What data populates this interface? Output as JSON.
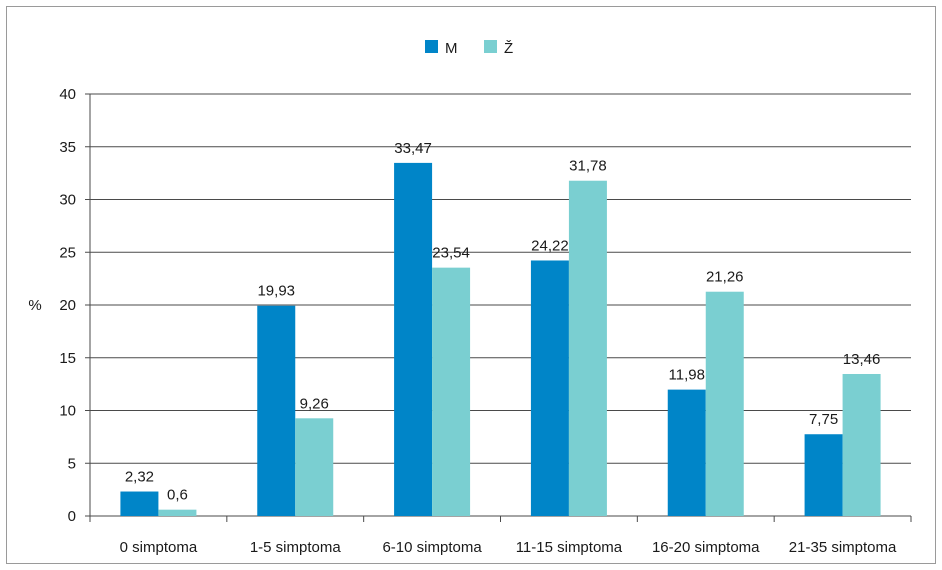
{
  "chart_data": {
    "type": "bar",
    "ylabel": "%",
    "ylim": [
      0,
      40
    ],
    "yticks": [
      0,
      5,
      10,
      15,
      20,
      25,
      30,
      35,
      40
    ],
    "grid": true,
    "legend_position": "top-center",
    "categories": [
      "0 simptoma",
      "1-5 simptoma",
      "6-10 simptoma",
      "11-15 simptoma",
      "16-20 simptoma",
      "21-35 simptoma"
    ],
    "series": [
      {
        "name": "M",
        "color": "#0085c8",
        "values": [
          2.32,
          19.93,
          33.47,
          24.22,
          11.98,
          7.75
        ],
        "labels": [
          "2,32",
          "19,93",
          "33,47",
          "24,22",
          "11,98",
          "7,75"
        ]
      },
      {
        "name": "Ž",
        "color": "#7acfd1",
        "values": [
          0.6,
          9.26,
          23.54,
          31.78,
          21.26,
          13.46
        ],
        "labels": [
          "0,6",
          "9,26",
          "23,54",
          "31,78",
          "21,26",
          "13,46"
        ]
      }
    ]
  }
}
